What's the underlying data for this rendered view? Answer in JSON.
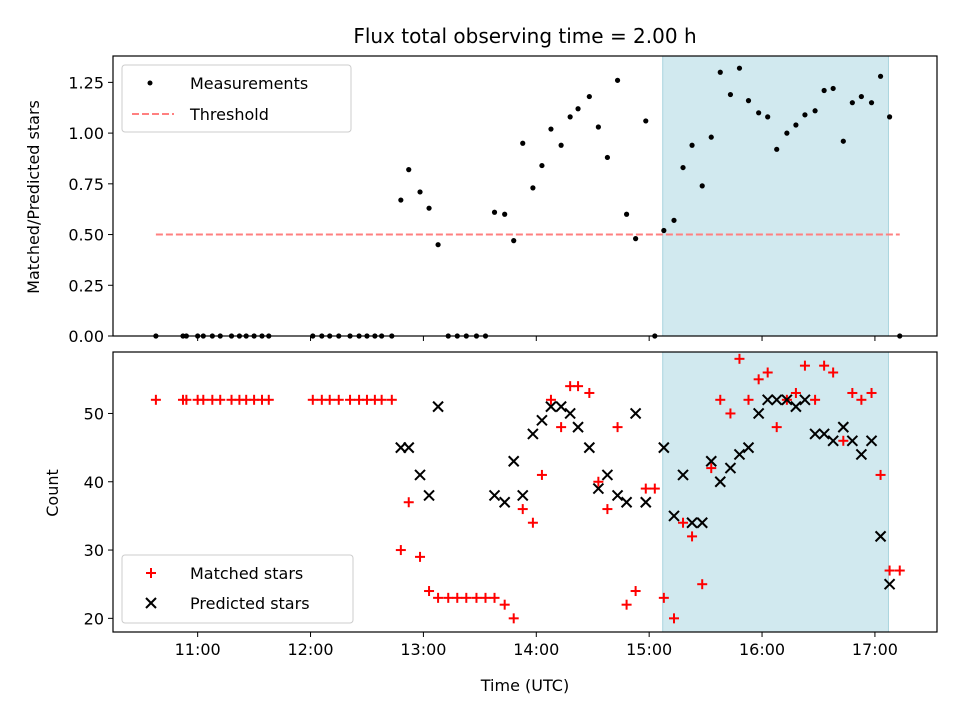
{
  "chart_data": {
    "type": "scatter",
    "title": "Flux total observing time = 2.00 h",
    "xlabel": "Time (UTC)",
    "x_ticks": [
      {
        "value": 11,
        "label": "11:00"
      },
      {
        "value": 12,
        "label": "12:00"
      },
      {
        "value": 13,
        "label": "13:00"
      },
      {
        "value": 14,
        "label": "14:00"
      },
      {
        "value": 15,
        "label": "15:00"
      },
      {
        "value": 16,
        "label": "16:00"
      },
      {
        "value": 17,
        "label": "17:00"
      }
    ],
    "xlim": [
      10.25,
      17.55
    ],
    "highlight_span": [
      15.12,
      17.12
    ],
    "highlight_color": "#d1e9ef",
    "top": {
      "ylabel": "Matched/Predicted stars",
      "ylim": [
        0,
        1.38
      ],
      "y_ticks": [
        {
          "value": 0,
          "label": "0.00"
        },
        {
          "value": 0.25,
          "label": "0.25"
        },
        {
          "value": 0.5,
          "label": "0.50"
        },
        {
          "value": 0.75,
          "label": "0.75"
        },
        {
          "value": 1.0,
          "label": "1.00"
        },
        {
          "value": 1.25,
          "label": "1.25"
        }
      ],
      "legend": {
        "measurements": "Measurements",
        "threshold": "Threshold"
      },
      "threshold": {
        "value": 0.5,
        "x_range": [
          10.63,
          17.22
        ],
        "color": "#ff8080"
      },
      "measurements": [
        [
          10.63,
          0
        ],
        [
          10.87,
          0
        ],
        [
          10.9,
          0
        ],
        [
          11.0,
          0
        ],
        [
          11.05,
          0
        ],
        [
          11.13,
          0
        ],
        [
          11.2,
          0
        ],
        [
          11.3,
          0
        ],
        [
          11.37,
          0
        ],
        [
          11.43,
          0
        ],
        [
          11.5,
          0
        ],
        [
          11.57,
          0
        ],
        [
          11.63,
          0
        ],
        [
          12.02,
          0
        ],
        [
          12.1,
          0
        ],
        [
          12.17,
          0
        ],
        [
          12.25,
          0
        ],
        [
          12.35,
          0
        ],
        [
          12.43,
          0
        ],
        [
          12.5,
          0
        ],
        [
          12.57,
          0
        ],
        [
          12.63,
          0
        ],
        [
          12.72,
          0
        ],
        [
          12.8,
          0.67
        ],
        [
          12.87,
          0.82
        ],
        [
          12.97,
          0.71
        ],
        [
          13.05,
          0.63
        ],
        [
          13.13,
          0.45
        ],
        [
          13.22,
          0
        ],
        [
          13.3,
          0
        ],
        [
          13.38,
          0
        ],
        [
          13.47,
          0
        ],
        [
          13.55,
          0
        ],
        [
          13.63,
          0.61
        ],
        [
          13.72,
          0.6
        ],
        [
          13.8,
          0.47
        ],
        [
          13.88,
          0.95
        ],
        [
          13.97,
          0.73
        ],
        [
          14.05,
          0.84
        ],
        [
          14.13,
          1.02
        ],
        [
          14.22,
          0.94
        ],
        [
          14.3,
          1.08
        ],
        [
          14.37,
          1.12
        ],
        [
          14.47,
          1.18
        ],
        [
          14.55,
          1.03
        ],
        [
          14.63,
          0.88
        ],
        [
          14.72,
          1.26
        ],
        [
          14.8,
          0.6
        ],
        [
          14.88,
          0.48
        ],
        [
          14.97,
          1.06
        ],
        [
          15.05,
          0
        ],
        [
          15.13,
          0.52
        ],
        [
          15.22,
          0.57
        ],
        [
          15.3,
          0.83
        ],
        [
          15.38,
          0.94
        ],
        [
          15.47,
          0.74
        ],
        [
          15.55,
          0.98
        ],
        [
          15.63,
          1.3
        ],
        [
          15.72,
          1.19
        ],
        [
          15.8,
          1.32
        ],
        [
          15.88,
          1.16
        ],
        [
          15.97,
          1.1
        ],
        [
          16.05,
          1.08
        ],
        [
          16.13,
          0.92
        ],
        [
          16.22,
          1.0
        ],
        [
          16.3,
          1.04
        ],
        [
          16.38,
          1.09
        ],
        [
          16.47,
          1.11
        ],
        [
          16.55,
          1.21
        ],
        [
          16.63,
          1.22
        ],
        [
          16.72,
          0.96
        ],
        [
          16.8,
          1.15
        ],
        [
          16.88,
          1.18
        ],
        [
          16.97,
          1.15
        ],
        [
          17.05,
          1.28
        ],
        [
          17.13,
          1.08
        ],
        [
          17.22,
          0
        ]
      ]
    },
    "bottom": {
      "ylabel": "Count",
      "ylim": [
        18,
        59
      ],
      "y_ticks": [
        {
          "value": 20,
          "label": "20"
        },
        {
          "value": 30,
          "label": "30"
        },
        {
          "value": 40,
          "label": "40"
        },
        {
          "value": 50,
          "label": "50"
        }
      ],
      "legend": {
        "matched": "Matched stars",
        "predicted": "Predicted stars"
      },
      "matched_color": "#ff0000",
      "predicted_color": "#000000",
      "matched": [
        [
          10.63,
          52
        ],
        [
          10.87,
          52
        ],
        [
          10.9,
          52
        ],
        [
          11.0,
          52
        ],
        [
          11.05,
          52
        ],
        [
          11.13,
          52
        ],
        [
          11.2,
          52
        ],
        [
          11.3,
          52
        ],
        [
          11.37,
          52
        ],
        [
          11.43,
          52
        ],
        [
          11.5,
          52
        ],
        [
          11.57,
          52
        ],
        [
          11.63,
          52
        ],
        [
          12.02,
          52
        ],
        [
          12.1,
          52
        ],
        [
          12.17,
          52
        ],
        [
          12.25,
          52
        ],
        [
          12.35,
          52
        ],
        [
          12.43,
          52
        ],
        [
          12.5,
          52
        ],
        [
          12.57,
          52
        ],
        [
          12.63,
          52
        ],
        [
          12.72,
          52
        ],
        [
          12.8,
          30
        ],
        [
          12.87,
          37
        ],
        [
          12.97,
          29
        ],
        [
          13.05,
          24
        ],
        [
          13.13,
          23
        ],
        [
          13.22,
          23
        ],
        [
          13.3,
          23
        ],
        [
          13.38,
          23
        ],
        [
          13.47,
          23
        ],
        [
          13.55,
          23
        ],
        [
          13.63,
          23
        ],
        [
          13.72,
          22
        ],
        [
          13.8,
          20
        ],
        [
          13.88,
          36
        ],
        [
          13.97,
          34
        ],
        [
          14.05,
          41
        ],
        [
          14.13,
          52
        ],
        [
          14.22,
          48
        ],
        [
          14.3,
          54
        ],
        [
          14.37,
          54
        ],
        [
          14.47,
          53
        ],
        [
          14.55,
          40
        ],
        [
          14.63,
          36
        ],
        [
          14.72,
          48
        ],
        [
          14.8,
          22
        ],
        [
          14.88,
          24
        ],
        [
          14.97,
          39
        ],
        [
          15.05,
          39
        ],
        [
          15.13,
          23
        ],
        [
          15.22,
          20
        ],
        [
          15.3,
          34
        ],
        [
          15.38,
          32
        ],
        [
          15.47,
          25
        ],
        [
          15.55,
          42
        ],
        [
          15.63,
          52
        ],
        [
          15.72,
          50
        ],
        [
          15.8,
          58
        ],
        [
          15.88,
          52
        ],
        [
          15.97,
          55
        ],
        [
          16.05,
          56
        ],
        [
          16.13,
          48
        ],
        [
          16.22,
          52
        ],
        [
          16.3,
          53
        ],
        [
          16.38,
          57
        ],
        [
          16.47,
          52
        ],
        [
          16.55,
          57
        ],
        [
          16.63,
          56
        ],
        [
          16.72,
          46
        ],
        [
          16.8,
          53
        ],
        [
          16.88,
          52
        ],
        [
          16.97,
          53
        ],
        [
          17.05,
          41
        ],
        [
          17.13,
          27
        ],
        [
          17.22,
          27
        ]
      ],
      "predicted": [
        [
          12.8,
          45
        ],
        [
          12.87,
          45
        ],
        [
          12.97,
          41
        ],
        [
          13.05,
          38
        ],
        [
          13.13,
          51
        ],
        [
          13.63,
          38
        ],
        [
          13.72,
          37
        ],
        [
          13.8,
          43
        ],
        [
          13.88,
          38
        ],
        [
          13.97,
          47
        ],
        [
          14.05,
          49
        ],
        [
          14.13,
          51
        ],
        [
          14.22,
          51
        ],
        [
          14.3,
          50
        ],
        [
          14.37,
          48
        ],
        [
          14.47,
          45
        ],
        [
          14.55,
          39
        ],
        [
          14.63,
          41
        ],
        [
          14.72,
          38
        ],
        [
          14.8,
          37
        ],
        [
          14.88,
          50
        ],
        [
          14.97,
          37
        ],
        [
          15.13,
          45
        ],
        [
          15.22,
          35
        ],
        [
          15.3,
          41
        ],
        [
          15.38,
          34
        ],
        [
          15.47,
          34
        ],
        [
          15.55,
          43
        ],
        [
          15.63,
          40
        ],
        [
          15.72,
          42
        ],
        [
          15.8,
          44
        ],
        [
          15.88,
          45
        ],
        [
          15.97,
          50
        ],
        [
          16.05,
          52
        ],
        [
          16.13,
          52
        ],
        [
          16.22,
          52
        ],
        [
          16.3,
          51
        ],
        [
          16.38,
          52
        ],
        [
          16.47,
          47
        ],
        [
          16.55,
          47
        ],
        [
          16.63,
          46
        ],
        [
          16.72,
          48
        ],
        [
          16.8,
          46
        ],
        [
          16.88,
          44
        ],
        [
          16.97,
          46
        ],
        [
          17.05,
          32
        ],
        [
          17.13,
          25
        ]
      ]
    }
  }
}
